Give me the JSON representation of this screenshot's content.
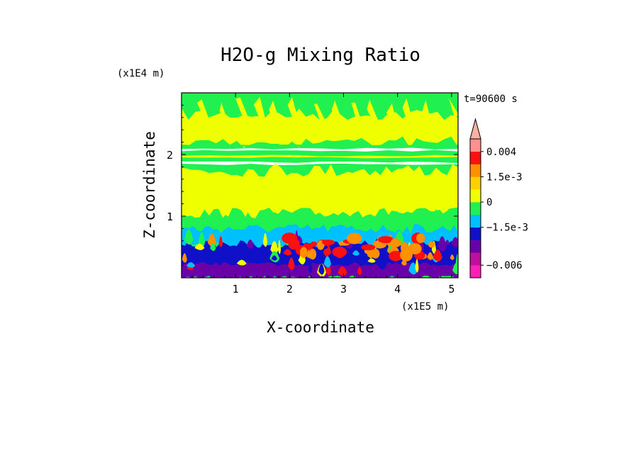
{
  "chart_data": {
    "type": "heatmap",
    "title": "H2O-g Mixing Ratio",
    "xlabel": "X-coordinate",
    "ylabel": "Z-coordinate",
    "x_scale_label": "(x1E5 m)",
    "y_scale_label": "(x1E4 m)",
    "time_label": "t=90600 s",
    "x_ticks": [
      "1",
      "2",
      "3",
      "4",
      "5"
    ],
    "x_tick_values": [
      1,
      2,
      3,
      4,
      5
    ],
    "y_ticks": [
      "1",
      "2"
    ],
    "y_tick_values": [
      1,
      2
    ],
    "xlim": [
      0,
      5.12
    ],
    "ylim": [
      0,
      3.0
    ],
    "colorbar": {
      "colors": [
        "#ff1fb4",
        "#c00fa0",
        "#6a00a8",
        "#1010c8",
        "#00c0ff",
        "#20f050",
        "#f0ff00",
        "#ffd000",
        "#ff9000",
        "#ff1010",
        "#ff9090",
        "#ffb0a0"
      ],
      "labels": [
        "0.004",
        "1.5e-3",
        "0",
        "−1.5e-3",
        "−0.006"
      ],
      "label_level_index": [
        10,
        8,
        6,
        4,
        1
      ]
    },
    "field_layers": [
      {
        "name": "upper-green-band",
        "z_range": [
          2.6,
          3.0
        ],
        "color": "#20f050"
      },
      {
        "name": "upper-yellow-band",
        "z_range": [
          2.2,
          2.6
        ],
        "color": "#f0ff00"
      },
      {
        "name": "thin-stripes",
        "z_range": [
          1.8,
          2.2
        ],
        "color": "#20f050"
      },
      {
        "name": "mid-yellow",
        "z_range": [
          1.05,
          1.8
        ],
        "color": "#f0ff00"
      },
      {
        "name": "mid-green",
        "z_range": [
          0.7,
          1.05
        ],
        "color": "#20f050"
      },
      {
        "name": "cyan-layer",
        "z_range": [
          0.55,
          0.8
        ],
        "color": "#00c0ff"
      },
      {
        "name": "blue-layer",
        "z_range": [
          0.15,
          0.55
        ],
        "color": "#1010c8"
      },
      {
        "name": "purple-floor",
        "z_range": [
          0,
          0.2
        ],
        "color": "#6a00a8"
      },
      {
        "name": "orange-plumes",
        "z_range": [
          0.3,
          0.7
        ],
        "color": "#ff9000"
      }
    ]
  }
}
